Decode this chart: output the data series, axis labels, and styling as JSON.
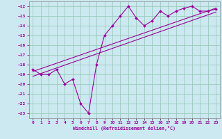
{
  "xlabel": "Windchill (Refroidissement éolien,°C)",
  "bg_color": "#cce8f0",
  "grid_color": "#99ccbb",
  "line_color": "#990099",
  "xlim": [
    -0.5,
    23.5
  ],
  "ylim": [
    -23.5,
    -11.5
  ],
  "xticks": [
    0,
    1,
    2,
    3,
    4,
    5,
    6,
    7,
    8,
    9,
    10,
    11,
    12,
    13,
    14,
    15,
    16,
    17,
    18,
    19,
    20,
    21,
    22,
    23
  ],
  "yticks": [
    -23,
    -22,
    -21,
    -20,
    -19,
    -18,
    -17,
    -16,
    -15,
    -14,
    -13,
    -12
  ],
  "hours": [
    0,
    1,
    2,
    3,
    4,
    5,
    6,
    7,
    8,
    9,
    10,
    11,
    12,
    13,
    14,
    15,
    16,
    17,
    18,
    19,
    20,
    21,
    22,
    23
  ],
  "temps": [
    -18.5,
    -19.0,
    -19.0,
    -18.5,
    -20.0,
    -19.5,
    -22.0,
    -23.0,
    -18.0,
    -15.0,
    -14.0,
    -13.0,
    -12.0,
    -13.2,
    -14.0,
    -13.5,
    -12.5,
    -13.0,
    -12.5,
    -12.2,
    -12.0,
    -12.5,
    -12.5,
    -12.3
  ],
  "trend1_x": [
    0,
    23
  ],
  "trend1_y": [
    -18.7,
    -12.2
  ],
  "trend2_x": [
    0,
    23
  ],
  "trend2_y": [
    -19.2,
    -12.6
  ]
}
